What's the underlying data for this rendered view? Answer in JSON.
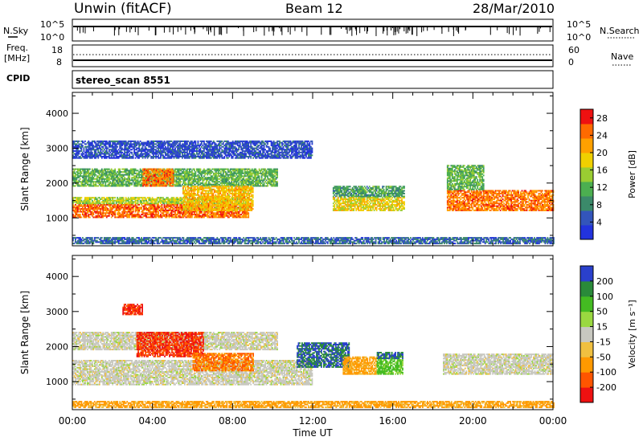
{
  "header": {
    "site": "Unwin (fitACF)",
    "beam": "Beam 12",
    "date": "28/Mar/2010"
  },
  "noise_panel": {
    "left_label": "N.Sky",
    "right_label": "N.Search",
    "left_ticks": [
      "10^5",
      "10^0"
    ],
    "right_ticks": [
      "10^5",
      "10^0"
    ]
  },
  "freq_panel": {
    "left_label_1": "Freq.",
    "left_label_2": "[MHz]",
    "right_label": "Nave",
    "left_ticks": [
      "18",
      "8"
    ],
    "right_ticks": [
      "60",
      "0"
    ]
  },
  "cpid": {
    "label": "CPID",
    "value": "stereo_scan 8551"
  },
  "colors": {
    "power_scale": [
      "#2233dd",
      "#3355bb",
      "#3b8a6a",
      "#4caf50",
      "#9acd32",
      "#f0d000",
      "#ffa000",
      "#ff6a00",
      "#ee1111"
    ],
    "velocity_scale": [
      "#ee1111",
      "#ff5500",
      "#ff9900",
      "#f0c040",
      "#c8c8c0",
      "#9ad840",
      "#44bb22",
      "#2a8a3a",
      "#2a40cc"
    ]
  },
  "chart_data": [
    {
      "type": "heatmap",
      "name_label": "power",
      "ylabel": "Slant Range [km]",
      "xlabel": "",
      "x_ticks": [
        "00:00",
        "04:00",
        "08:00",
        "12:00",
        "16:00",
        "20:00",
        "00:00"
      ],
      "y_ticks": [
        1000,
        2000,
        3000,
        4000
      ],
      "x_range_hours": [
        0,
        24
      ],
      "ylim": [
        200,
        4600
      ],
      "colorbar_label": "Power [dB]",
      "colorbar_ticks": [
        4,
        8,
        12,
        16,
        20,
        24,
        28
      ],
      "colorbar_range": [
        0,
        30
      ],
      "bands": [
        {
          "t": [
            0.0,
            8.8
          ],
          "r": [
            1000,
            1400
          ],
          "level": 25
        },
        {
          "t": [
            0.0,
            8.8
          ],
          "r": [
            1400,
            1600
          ],
          "level": 16
        },
        {
          "t": [
            0.0,
            10.2
          ],
          "r": [
            1900,
            2400
          ],
          "level": 12
        },
        {
          "t": [
            3.5,
            5.0
          ],
          "r": [
            1900,
            2400
          ],
          "level": 24
        },
        {
          "t": [
            5.5,
            9.0
          ],
          "r": [
            1200,
            1900
          ],
          "level": 20
        },
        {
          "t": [
            13.0,
            16.6
          ],
          "r": [
            1200,
            1600
          ],
          "level": 18
        },
        {
          "t": [
            13.0,
            16.6
          ],
          "r": [
            1600,
            1900
          ],
          "level": 10
        },
        {
          "t": [
            18.7,
            24.0
          ],
          "r": [
            1200,
            1800
          ],
          "level": 24
        },
        {
          "t": [
            18.7,
            20.5
          ],
          "r": [
            1800,
            2500
          ],
          "level": 12
        },
        {
          "t": [
            0.0,
            12.0
          ],
          "r": [
            2700,
            3200
          ],
          "level": 4
        },
        {
          "t": [
            0.0,
            24.0
          ],
          "r": [
            250,
            450
          ],
          "level": 6
        }
      ]
    },
    {
      "type": "heatmap",
      "name_label": "velocity",
      "ylabel": "Slant Range [km]",
      "xlabel": "Time UT",
      "x_ticks": [
        "00:00",
        "04:00",
        "08:00",
        "12:00",
        "16:00",
        "20:00",
        "00:00"
      ],
      "y_ticks": [
        1000,
        2000,
        3000,
        4000
      ],
      "x_range_hours": [
        0,
        24
      ],
      "ylim": [
        200,
        4600
      ],
      "colorbar_label": "Velocity [m s⁻¹]",
      "colorbar_ticks": [
        200,
        100,
        50,
        15,
        -15,
        -50,
        -100,
        -200
      ],
      "bands": [
        {
          "t": [
            0.0,
            12.0
          ],
          "r": [
            900,
            1600
          ],
          "level": 0
        },
        {
          "t": [
            0.0,
            10.2
          ],
          "r": [
            1900,
            2400
          ],
          "level": 0
        },
        {
          "t": [
            3.2,
            6.5
          ],
          "r": [
            1700,
            2400
          ],
          "level": -200
        },
        {
          "t": [
            6.0,
            9.0
          ],
          "r": [
            1300,
            1800
          ],
          "level": -100
        },
        {
          "t": [
            11.2,
            13.8
          ],
          "r": [
            1400,
            2100
          ],
          "level": 200
        },
        {
          "t": [
            13.5,
            15.2
          ],
          "r": [
            1200,
            1700
          ],
          "level": -60
        },
        {
          "t": [
            15.2,
            16.5
          ],
          "r": [
            1200,
            1700
          ],
          "level": 60
        },
        {
          "t": [
            15.2,
            16.5
          ],
          "r": [
            1650,
            1850
          ],
          "level": 200
        },
        {
          "t": [
            18.5,
            24.0
          ],
          "r": [
            1200,
            1800
          ],
          "level": 0
        },
        {
          "t": [
            0.0,
            24.0
          ],
          "r": [
            250,
            450
          ],
          "level": -60
        },
        {
          "t": [
            2.5,
            3.5
          ],
          "r": [
            2900,
            3200
          ],
          "level": -200
        }
      ]
    }
  ]
}
